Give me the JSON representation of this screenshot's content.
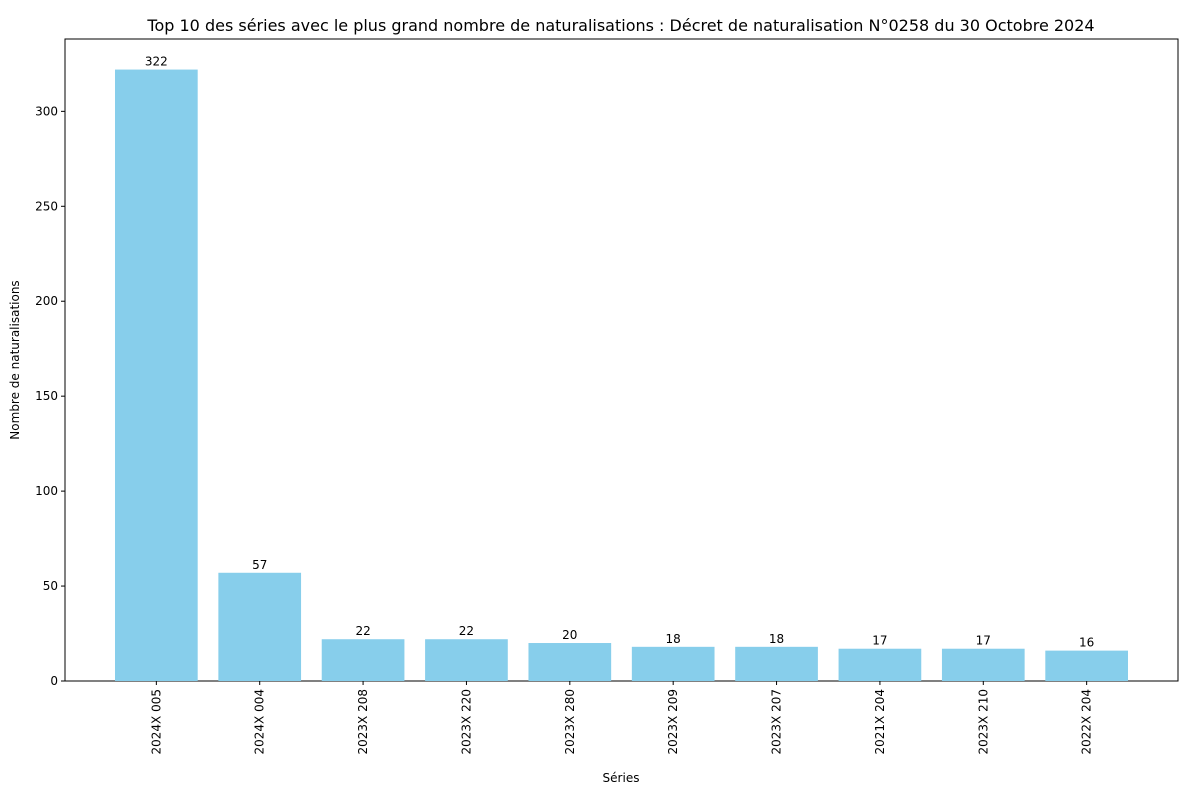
{
  "chart_data": {
    "type": "bar",
    "title": "Top 10 des séries avec le plus grand nombre de naturalisations : Décret de naturalisation N°0258 du 30 Octobre 2024",
    "xlabel": "Séries",
    "ylabel": "Nombre de naturalisations",
    "categories": [
      "2024X 005",
      "2024X 004",
      "2023X 208",
      "2023X 220",
      "2023X 280",
      "2023X 209",
      "2023X 207",
      "2021X 204",
      "2023X 210",
      "2022X 204"
    ],
    "values": [
      322,
      57,
      22,
      22,
      20,
      18,
      18,
      17,
      17,
      16
    ],
    "data_labels": [
      "322",
      "57",
      "22",
      "22",
      "20",
      "18",
      "18",
      "17",
      "17",
      "16"
    ],
    "yticks": [
      0,
      50,
      100,
      150,
      200,
      250,
      300
    ],
    "ylim": [
      0,
      338.1
    ],
    "bar_color": "#87CEEB",
    "grid": false,
    "legend": "none"
  }
}
